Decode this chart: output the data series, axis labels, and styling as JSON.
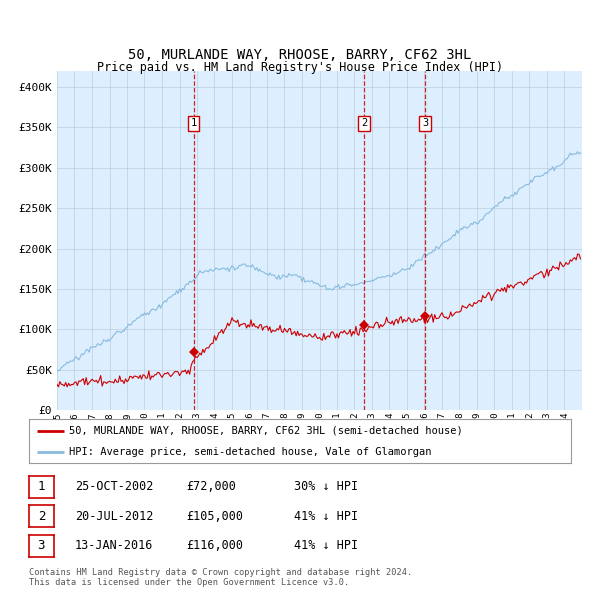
{
  "title": "50, MURLANDE WAY, RHOOSE, BARRY, CF62 3HL",
  "subtitle": "Price paid vs. HM Land Registry's House Price Index (HPI)",
  "background_color": "#ffffff",
  "plot_bg_color": "#ddeeff",
  "hpi_color": "#88bbdd",
  "price_color": "#cc0000",
  "ylim": [
    0,
    420000
  ],
  "yticks": [
    0,
    50000,
    100000,
    150000,
    200000,
    250000,
    300000,
    350000,
    400000
  ],
  "ytick_labels": [
    "£0",
    "£50K",
    "£100K",
    "£150K",
    "£200K",
    "£250K",
    "£300K",
    "£350K",
    "£400K"
  ],
  "sale_dates_dt": [
    "2002-10-25",
    "2012-07-20",
    "2016-01-13"
  ],
  "sale_prices": [
    72000,
    105000,
    116000
  ],
  "sale_labels": [
    "1",
    "2",
    "3"
  ],
  "sale_date_strs": [
    "25-OCT-2002",
    "20-JUL-2012",
    "13-JAN-2016"
  ],
  "sale_price_strs": [
    "£72,000",
    "£105,000",
    "£116,000"
  ],
  "sale_hpi_strs": [
    "30% ↓ HPI",
    "41% ↓ HPI",
    "41% ↓ HPI"
  ],
  "legend_line1": "50, MURLANDE WAY, RHOOSE, BARRY, CF62 3HL (semi-detached house)",
  "legend_line2": "HPI: Average price, semi-detached house, Vale of Glamorgan",
  "footer": "Contains HM Land Registry data © Crown copyright and database right 2024.\nThis data is licensed under the Open Government Licence v3.0."
}
